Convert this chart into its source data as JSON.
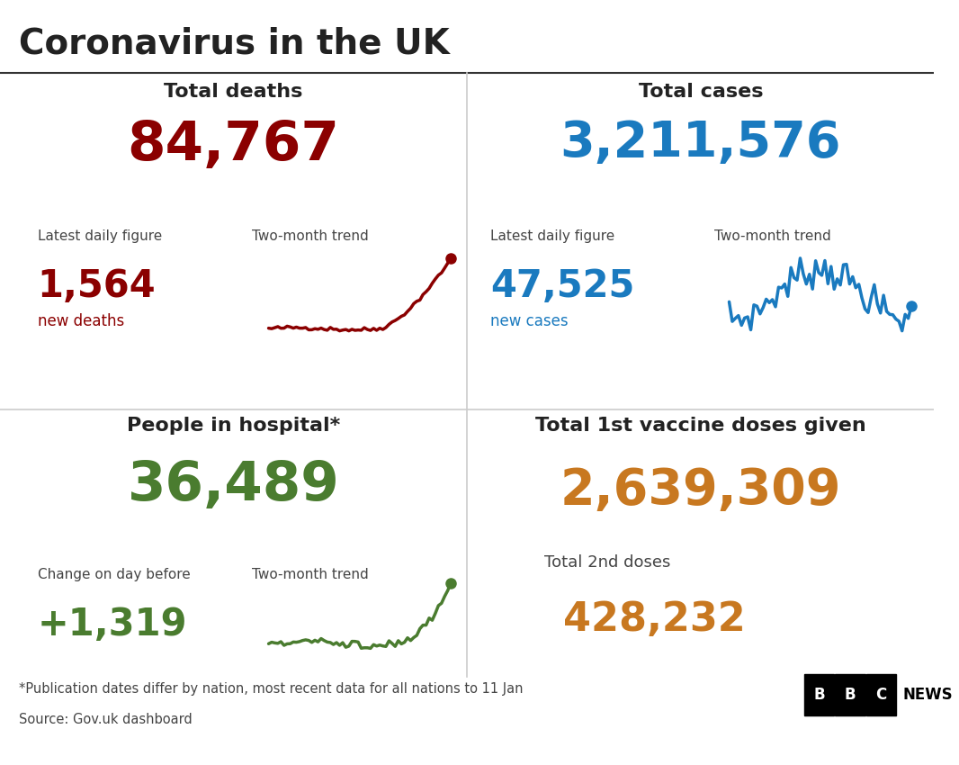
{
  "title": "Coronavirus in the UK",
  "background_color": "#ffffff",
  "title_color": "#222222",
  "divider_color": "#cccccc",
  "deaths_label": "Total deaths",
  "deaths_total": "84,767",
  "deaths_total_color": "#8b0000",
  "deaths_daily_label": "Latest daily figure",
  "deaths_daily_value": "1,564",
  "deaths_daily_sub": "new deaths",
  "deaths_daily_color": "#8b0000",
  "deaths_trend_label": "Two-month trend",
  "cases_label": "Total cases",
  "cases_total": "3,211,576",
  "cases_total_color": "#1a7abf",
  "cases_daily_label": "Latest daily figure",
  "cases_daily_value": "47,525",
  "cases_daily_sub": "new cases",
  "cases_daily_color": "#1a7abf",
  "cases_trend_label": "Two-month trend",
  "hospital_label": "People in hospital*",
  "hospital_total": "36,489",
  "hospital_total_color": "#4a7c2f",
  "hospital_change_label": "Change on day before",
  "hospital_change_value": "+1,319",
  "hospital_change_color": "#4a7c2f",
  "hospital_trend_label": "Two-month trend",
  "vaccine_label": "Total 1st vaccine doses given",
  "vaccine_total": "2,639,309",
  "vaccine_total_color": "#c87820",
  "vaccine_2nd_label": "Total 2nd doses",
  "vaccine_2nd_value": "428,232",
  "vaccine_2nd_color": "#c87820",
  "footnote": "*Publication dates differ by nation, most recent data for all nations to 11 Jan",
  "source": "Source: Gov.uk dashboard",
  "footnote_color": "#444444"
}
